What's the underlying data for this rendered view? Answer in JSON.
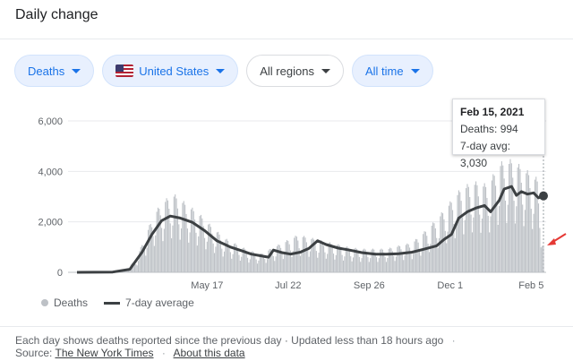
{
  "header": {
    "title": "Daily change"
  },
  "filters": [
    {
      "label": "Deaths",
      "style": "blue"
    },
    {
      "label": "United States",
      "style": "blue",
      "flag": "us-flag-icon"
    },
    {
      "label": "All regions",
      "style": "plain"
    },
    {
      "label": "All time",
      "style": "blue"
    }
  ],
  "tooltip": {
    "date": "Feb 15, 2021",
    "deaths": "Deaths: 994",
    "avg": "7-day avg: 3,030"
  },
  "legend": {
    "bars": "Deaths",
    "line": "7-day average"
  },
  "footer": {
    "note": "Each day shows deaths reported since the previous day · Updated less than 18 hours ago",
    "sep": "·",
    "source_label": "Source:",
    "source_link": "The New York Times",
    "about_link": "About this data"
  },
  "colors": {
    "bars": "#bdc1c6",
    "line": "#3c4043",
    "grid": "#e8eaed",
    "accent": "#1a73e8",
    "arrow": "#e53935"
  },
  "chart_data": {
    "type": "bar",
    "y_ticks": [
      "6,000",
      "4,000",
      "2,000",
      "0"
    ],
    "y_tick_values": [
      6000,
      4000,
      2000,
      0
    ],
    "ylim": [
      0,
      6000
    ],
    "x_ticks": [
      "May 17",
      "Jul 22",
      "Sep 26",
      "Dec 1",
      "Feb 5"
    ],
    "x_tick_dates": [
      "2020-05-17",
      "2020-07-22",
      "2020-09-26",
      "2020-12-01",
      "2021-02-05"
    ],
    "start_date": "2020-02-01",
    "series": [
      {
        "name": "Deaths",
        "type": "bar",
        "points": [
          [
            "2020-02-01",
            0
          ],
          [
            "2020-03-10",
            50
          ],
          [
            "2020-03-20",
            400
          ],
          [
            "2020-03-28",
            1200
          ],
          [
            "2020-04-04",
            1900
          ],
          [
            "2020-04-12",
            2300
          ],
          [
            "2020-04-20",
            2500
          ],
          [
            "2020-04-30",
            2200
          ],
          [
            "2020-05-10",
            1900
          ],
          [
            "2020-05-20",
            1500
          ],
          [
            "2020-05-31",
            1100
          ],
          [
            "2020-06-10",
            900
          ],
          [
            "2020-06-20",
            700
          ],
          [
            "2020-06-30",
            600
          ],
          [
            "2020-07-10",
            800
          ],
          [
            "2020-07-20",
            1000
          ],
          [
            "2020-07-30",
            1200
          ],
          [
            "2020-08-10",
            1100
          ],
          [
            "2020-08-20",
            1000
          ],
          [
            "2020-08-31",
            900
          ],
          [
            "2020-09-10",
            800
          ],
          [
            "2020-09-20",
            750
          ],
          [
            "2020-09-30",
            750
          ],
          [
            "2020-10-10",
            750
          ],
          [
            "2020-10-20",
            850
          ],
          [
            "2020-10-31",
            950
          ],
          [
            "2020-11-10",
            1300
          ],
          [
            "2020-11-20",
            1700
          ],
          [
            "2020-11-30",
            2200
          ],
          [
            "2020-12-10",
            2700
          ],
          [
            "2020-12-20",
            2900
          ],
          [
            "2021-01-01",
            2800
          ],
          [
            "2021-01-10",
            3500
          ],
          [
            "2021-01-20",
            3600
          ],
          [
            "2021-01-31",
            3300
          ],
          [
            "2021-02-10",
            3000
          ],
          [
            "2021-02-15",
            994
          ]
        ]
      },
      {
        "name": "7-day average",
        "type": "line",
        "points": [
          [
            "2020-02-01",
            0
          ],
          [
            "2020-03-01",
            10
          ],
          [
            "2020-03-15",
            120
          ],
          [
            "2020-03-25",
            800
          ],
          [
            "2020-04-02",
            1500
          ],
          [
            "2020-04-10",
            2050
          ],
          [
            "2020-04-17",
            2230
          ],
          [
            "2020-04-25",
            2150
          ],
          [
            "2020-05-05",
            1980
          ],
          [
            "2020-05-15",
            1650
          ],
          [
            "2020-05-25",
            1250
          ],
          [
            "2020-06-05",
            1000
          ],
          [
            "2020-06-15",
            840
          ],
          [
            "2020-06-22",
            720
          ],
          [
            "2020-06-29",
            660
          ],
          [
            "2020-07-06",
            600
          ],
          [
            "2020-07-10",
            880
          ],
          [
            "2020-07-17",
            780
          ],
          [
            "2020-07-24",
            720
          ],
          [
            "2020-08-01",
            800
          ],
          [
            "2020-08-08",
            950
          ],
          [
            "2020-08-15",
            1250
          ],
          [
            "2020-08-22",
            1100
          ],
          [
            "2020-09-01",
            960
          ],
          [
            "2020-09-10",
            880
          ],
          [
            "2020-09-20",
            780
          ],
          [
            "2020-10-01",
            720
          ],
          [
            "2020-10-10",
            720
          ],
          [
            "2020-10-20",
            740
          ],
          [
            "2020-10-31",
            800
          ],
          [
            "2020-11-10",
            920
          ],
          [
            "2020-11-20",
            1050
          ],
          [
            "2020-11-26",
            1300
          ],
          [
            "2020-12-02",
            1500
          ],
          [
            "2020-12-08",
            2150
          ],
          [
            "2020-12-15",
            2400
          ],
          [
            "2020-12-22",
            2550
          ],
          [
            "2020-12-29",
            2650
          ],
          [
            "2021-01-03",
            2400
          ],
          [
            "2021-01-10",
            2850
          ],
          [
            "2021-01-14",
            3300
          ],
          [
            "2021-01-20",
            3400
          ],
          [
            "2021-01-24",
            3050
          ],
          [
            "2021-01-28",
            3200
          ],
          [
            "2021-02-02",
            3100
          ],
          [
            "2021-02-07",
            3150
          ],
          [
            "2021-02-11",
            2950
          ],
          [
            "2021-02-15",
            3030
          ]
        ]
      }
    ],
    "highlight": {
      "date": "2021-02-15",
      "value": 3030
    },
    "legend_position": "bottom-left",
    "grid": true
  }
}
